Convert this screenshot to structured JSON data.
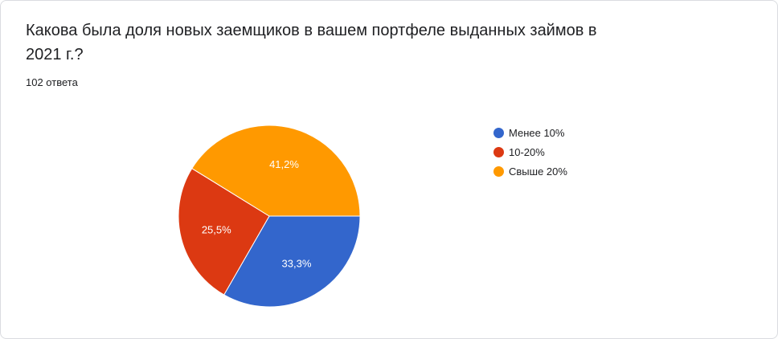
{
  "header": {
    "question": "Какова была доля новых заемщиков в вашем портфеле выданных займов в 2021 г.?",
    "response_count": "102 ответа"
  },
  "chart_data": {
    "type": "pie",
    "categories": [
      "Менее 10%",
      "10-20%",
      "Свыше 20%"
    ],
    "values": [
      33.3,
      25.5,
      41.2
    ],
    "labels": [
      "33,3%",
      "25,5%",
      "41,2%"
    ],
    "colors": [
      "#3366cc",
      "#dc3912",
      "#ff9900"
    ],
    "start": "3 o'clock, clockwise",
    "legend": "right"
  }
}
